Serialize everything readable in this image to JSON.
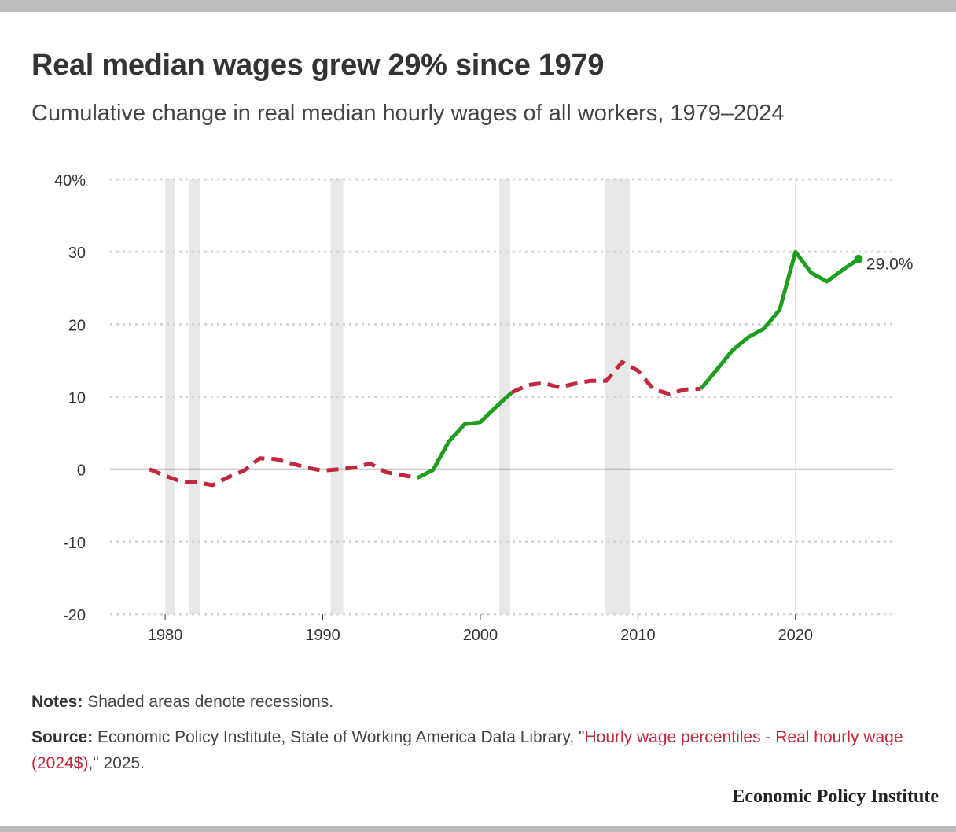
{
  "title": "Real median wages grew 29% since 1979",
  "subtitle": "Cumulative change in real median hourly wages of all workers, 1979–2024",
  "notes": {
    "label": "Notes:",
    "text": "Shaded areas denote recessions."
  },
  "source": {
    "label": "Source:",
    "text_before": "Economic Policy Institute, State of Working America Data Library, \"",
    "link_text": "Hourly wage percentiles - Real hourly wage (2024$)",
    "text_after": ",\" 2025."
  },
  "brand": "Economic Policy Institute",
  "colors": {
    "green": "#1e9e1e",
    "red": "#c0283d",
    "grid": "#d4d4d4",
    "recession": "#e8e8e8",
    "zero_line": "#7a7a7a"
  },
  "chart_data": {
    "type": "line",
    "title": "Real median wages grew 29% since 1979",
    "ylabel": "",
    "xlabel": "",
    "ylim": [
      -20,
      40
    ],
    "xlim": [
      1976.5,
      2026.2
    ],
    "y_ticks": [
      -20,
      -10,
      0,
      10,
      20,
      30,
      40
    ],
    "y_tick_labels": [
      "-20",
      "-10",
      "0",
      "10",
      "20",
      "30",
      "40%"
    ],
    "x_ticks": [
      1980,
      1990,
      2000,
      2010,
      2020
    ],
    "x_tick_labels": [
      "1980",
      "1990",
      "2000",
      "2010",
      "2020"
    ],
    "grid": true,
    "legend": "none",
    "recessions": [
      [
        1980.0,
        1980.6
      ],
      [
        1981.5,
        1982.2
      ],
      [
        1990.5,
        1991.3
      ],
      [
        2001.2,
        2001.9
      ],
      [
        2007.9,
        2009.5
      ]
    ],
    "x": [
      1979,
      1980,
      1981,
      1982,
      1983,
      1984,
      1985,
      1986,
      1987,
      1988,
      1989,
      1990,
      1991,
      1992,
      1993,
      1994,
      1995,
      1996,
      1997,
      1998,
      1999,
      2000,
      2001,
      2002,
      2003,
      2004,
      2005,
      2006,
      2007,
      2008,
      2009,
      2010,
      2011,
      2012,
      2013,
      2014,
      2015,
      2016,
      2017,
      2018,
      2019,
      2020,
      2021,
      2022,
      2023,
      2024
    ],
    "y": [
      0.0,
      -0.9,
      -1.7,
      -1.8,
      -2.2,
      -1.1,
      -0.2,
      1.5,
      1.4,
      0.8,
      0.2,
      -0.2,
      0.0,
      0.2,
      0.8,
      -0.4,
      -0.8,
      -1.2,
      -0.1,
      3.8,
      6.2,
      6.5,
      8.6,
      10.6,
      11.6,
      11.9,
      11.3,
      11.8,
      12.2,
      12.2,
      14.8,
      13.6,
      11.0,
      10.4,
      11.0,
      11.1,
      13.7,
      16.4,
      18.2,
      19.4,
      22.0,
      30.0,
      27.1,
      25.9,
      27.5,
      29.0
    ],
    "segments": [
      {
        "style": "dashed",
        "color": "red",
        "from": 1979,
        "to": 1996
      },
      {
        "style": "solid",
        "color": "green",
        "from": 1996,
        "to": 2002
      },
      {
        "style": "dashed",
        "color": "red",
        "from": 2002,
        "to": 2014
      },
      {
        "style": "solid",
        "color": "green",
        "from": 2014,
        "to": 2024
      }
    ],
    "end_label": "29.0%"
  }
}
